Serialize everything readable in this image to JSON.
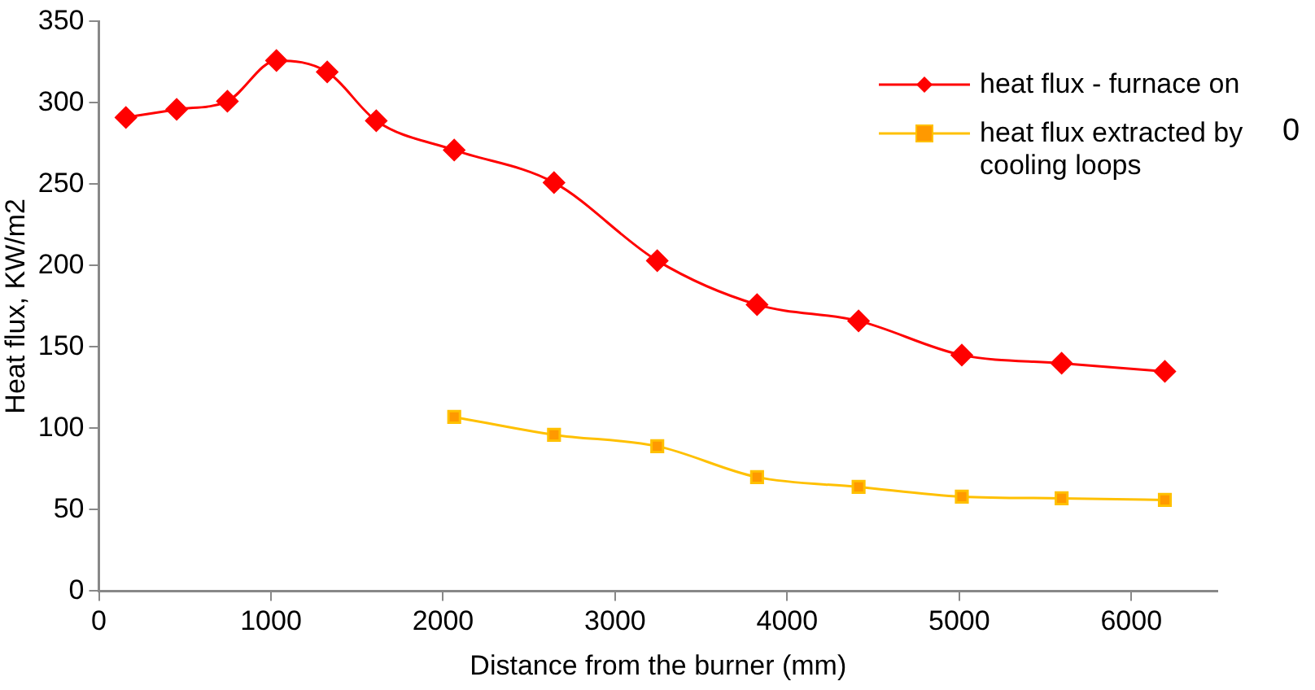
{
  "chart_data": {
    "type": "line",
    "xlabel": "Distance from the burner (mm)",
    "ylabel": "Heat flux, KW/m2",
    "xlim": [
      0,
      6500
    ],
    "xticks": [
      0,
      1000,
      2000,
      3000,
      4000,
      5000,
      6000
    ],
    "ylim": [
      0,
      350
    ],
    "yticks": [
      0,
      50,
      100,
      150,
      200,
      250,
      300,
      350
    ],
    "grid": false,
    "legend": "top right",
    "annotations": [
      "0"
    ],
    "series": [
      {
        "name": "heat flux - furnace on",
        "color": "#ff0000",
        "marker": "diamond",
        "x": [
          157,
          452,
          747,
          1032,
          1327,
          1612,
          2065,
          2645,
          3245,
          3825,
          4415,
          5015,
          5595,
          6195
        ],
        "values": [
          291,
          296,
          301,
          326,
          319,
          289,
          271,
          251,
          203,
          176,
          166,
          145,
          140,
          135
        ]
      },
      {
        "name": "heat flux extracted by cooling loops",
        "color": "#ffc000",
        "marker": "square",
        "x": [
          2065,
          2645,
          3245,
          3825,
          4415,
          5015,
          5595,
          6195
        ],
        "values": [
          107,
          96,
          89,
          70,
          64,
          58,
          57,
          56
        ]
      }
    ]
  }
}
